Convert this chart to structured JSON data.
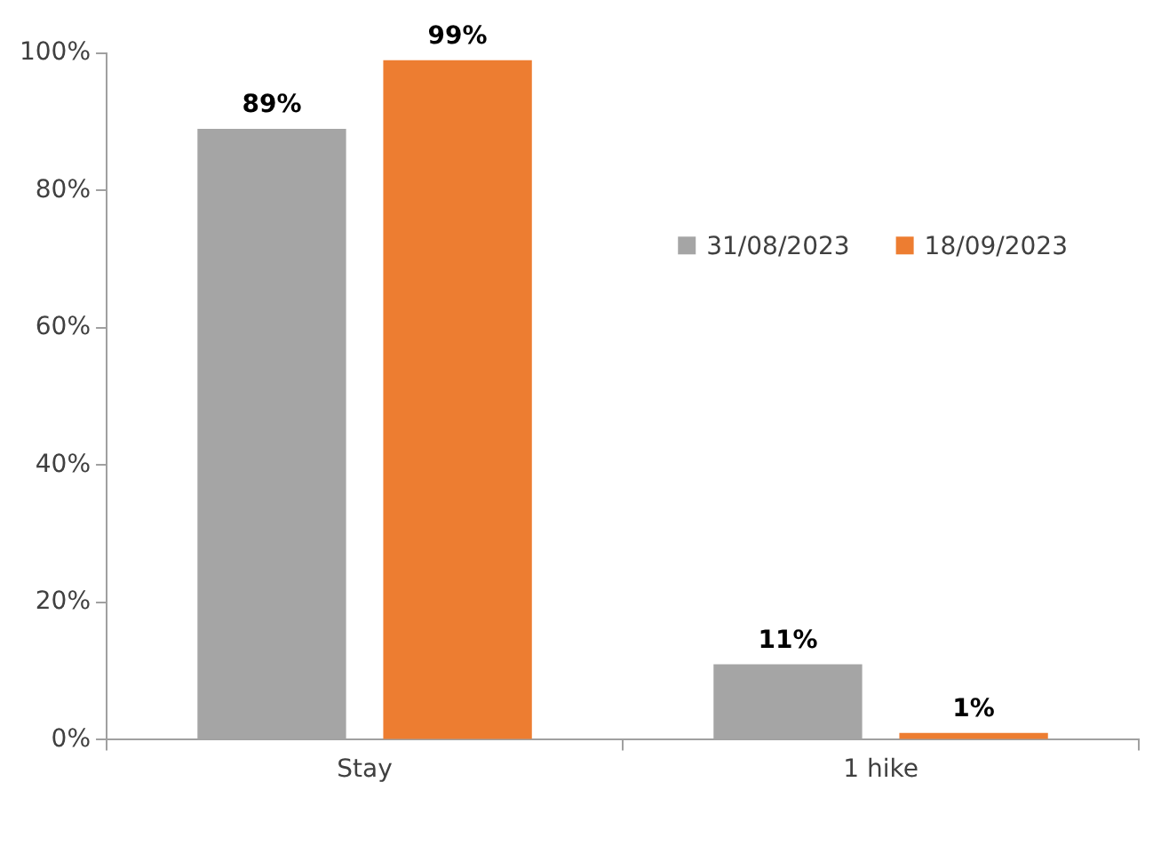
{
  "chart_data": {
    "type": "bar",
    "categories": [
      "Stay",
      "1 hike"
    ],
    "series": [
      {
        "name": "31/08/2023",
        "color": "#a5a5a5",
        "values": [
          89,
          11
        ],
        "value_labels": [
          "89%",
          "11%"
        ]
      },
      {
        "name": "18/09/2023",
        "color": "#ed7d31",
        "values": [
          99,
          1
        ],
        "value_labels": [
          "99%",
          "1%"
        ]
      }
    ],
    "ylim": [
      0,
      100
    ],
    "yticks": [
      {
        "value": 0,
        "label": "0%"
      },
      {
        "value": 20,
        "label": "20%"
      },
      {
        "value": 40,
        "label": "40%"
      },
      {
        "value": 60,
        "label": "60%"
      },
      {
        "value": 80,
        "label": "80%"
      },
      {
        "value": 100,
        "label": "100%"
      }
    ],
    "grid": false,
    "legend": "top right"
  }
}
